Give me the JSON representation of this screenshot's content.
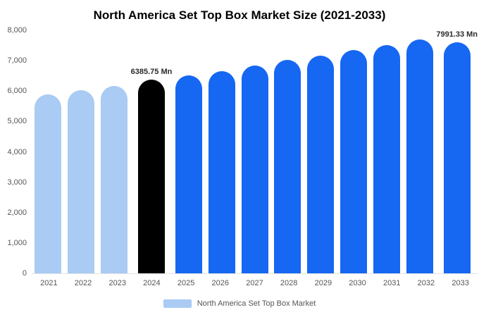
{
  "title": "North America Set Top Box Market Size (2021-2033)",
  "legend": {
    "label": "North America Set Top Box Market",
    "swatch_color": "#a9cbf4"
  },
  "chart_data": {
    "type": "bar",
    "title": "North America Set Top Box Market Size (2021-2033)",
    "xlabel": "",
    "ylabel": "",
    "ylim": [
      0,
      8000
    ],
    "grid": false,
    "legend_position": "bottom",
    "categories": [
      "2021",
      "2022",
      "2023",
      "2024",
      "2025",
      "2026",
      "2027",
      "2028",
      "2029",
      "2030",
      "2031",
      "2032",
      "2033"
    ],
    "values": [
      5880,
      6020,
      6170,
      6385.75,
      6520,
      6660,
      6840,
      7020,
      7170,
      7350,
      7520,
      7710,
      7991.33
    ],
    "yticks": [
      "0",
      "1,000",
      "2,000",
      "3,000",
      "4,000",
      "5,000",
      "6,000",
      "7,000",
      "8,000"
    ],
    "palette": {
      "past": "#a9cbf4",
      "highlight": "#000000",
      "forecast": "#1667f2"
    },
    "bar_styles": [
      "past",
      "past",
      "past",
      "highlight",
      "forecast",
      "forecast",
      "forecast",
      "forecast",
      "forecast",
      "forecast",
      "forecast",
      "forecast",
      "forecast"
    ],
    "annotations": [
      {
        "index": 3,
        "text": "6385.75 Mn"
      },
      {
        "index": 12,
        "text": "7991.33 Mn"
      }
    ]
  }
}
